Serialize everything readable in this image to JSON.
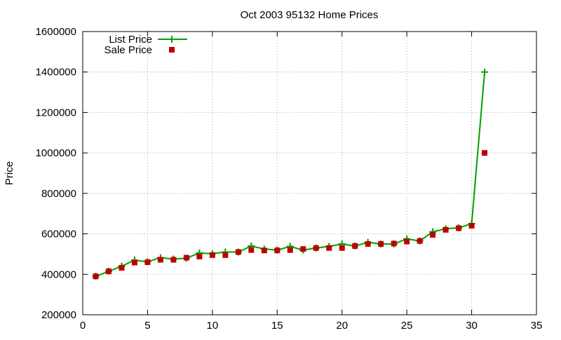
{
  "chart_data": {
    "type": "line",
    "title": "Oct 2003 95132 Home Prices",
    "xlabel": "",
    "ylabel": "Price",
    "xlim": [
      0,
      35
    ],
    "ylim": [
      200000,
      1600000
    ],
    "xticks": [
      0,
      5,
      10,
      15,
      20,
      25,
      30,
      35
    ],
    "yticks": [
      200000,
      400000,
      600000,
      800000,
      1000000,
      1200000,
      1400000,
      1600000
    ],
    "grid": true,
    "legend_position": "top-left",
    "series": [
      {
        "name": "List Price",
        "style": "line+cross",
        "color": "#00a000",
        "points": [
          [
            1,
            390000
          ],
          [
            2,
            415000
          ],
          [
            3,
            440000
          ],
          [
            4,
            470000
          ],
          [
            5,
            462000
          ],
          [
            6,
            482000
          ],
          [
            7,
            475000
          ],
          [
            8,
            480000
          ],
          [
            9,
            505000
          ],
          [
            10,
            502000
          ],
          [
            11,
            510000
          ],
          [
            12,
            510000
          ],
          [
            13,
            540000
          ],
          [
            14,
            525000
          ],
          [
            15,
            520000
          ],
          [
            16,
            538000
          ],
          [
            17,
            520000
          ],
          [
            18,
            530000
          ],
          [
            19,
            538000
          ],
          [
            20,
            550000
          ],
          [
            21,
            540000
          ],
          [
            22,
            558000
          ],
          [
            23,
            550000
          ],
          [
            24,
            550000
          ],
          [
            25,
            575000
          ],
          [
            26,
            565000
          ],
          [
            27,
            610000
          ],
          [
            28,
            625000
          ],
          [
            29,
            630000
          ],
          [
            30,
            650000
          ],
          [
            31,
            1400000
          ]
        ]
      },
      {
        "name": "Sale Price",
        "style": "square",
        "color": "#c00000",
        "points": [
          [
            1,
            390000
          ],
          [
            2,
            415000
          ],
          [
            3,
            432000
          ],
          [
            4,
            458000
          ],
          [
            5,
            460000
          ],
          [
            6,
            472000
          ],
          [
            7,
            472000
          ],
          [
            8,
            482000
          ],
          [
            9,
            488000
          ],
          [
            10,
            495000
          ],
          [
            11,
            495000
          ],
          [
            12,
            510000
          ],
          [
            13,
            520000
          ],
          [
            14,
            518000
          ],
          [
            15,
            518000
          ],
          [
            16,
            520000
          ],
          [
            17,
            525000
          ],
          [
            18,
            530000
          ],
          [
            19,
            530000
          ],
          [
            20,
            530000
          ],
          [
            21,
            540000
          ],
          [
            22,
            550000
          ],
          [
            23,
            550000
          ],
          [
            24,
            552000
          ],
          [
            25,
            562000
          ],
          [
            26,
            565000
          ],
          [
            27,
            595000
          ],
          [
            28,
            620000
          ],
          [
            29,
            628000
          ],
          [
            30,
            640000
          ],
          [
            31,
            1000000
          ]
        ]
      }
    ]
  }
}
